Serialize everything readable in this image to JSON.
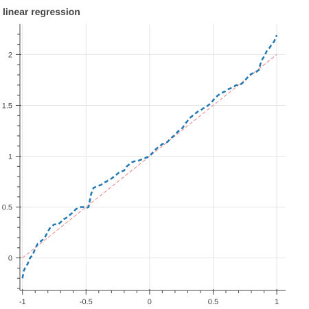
{
  "chart_data": {
    "type": "line",
    "title": "linear regression",
    "xlabel": "",
    "ylabel": "",
    "xlim": [
      -1.02,
      1.07
    ],
    "ylim": [
      -0.32,
      2.3
    ],
    "grid": true,
    "x_ticks": [
      -1,
      -0.5,
      0,
      0.5,
      1
    ],
    "x_tick_labels": [
      "-1",
      "-0.5",
      "0",
      "0.5",
      "1"
    ],
    "y_ticks": [
      0,
      0.5,
      1,
      1.5,
      2
    ],
    "y_tick_labels": [
      "0",
      "0.5",
      "1",
      "1.5",
      "2"
    ],
    "series": [
      {
        "style": "dashed",
        "color": "#1f77b4",
        "x": [
          -1.0,
          -0.99,
          -0.98,
          -0.96,
          -0.94,
          -0.92,
          -0.9,
          -0.88,
          -0.86,
          -0.84,
          -0.82,
          -0.8,
          -0.78,
          -0.75,
          -0.72,
          -0.7,
          -0.68,
          -0.66,
          -0.64,
          -0.62,
          -0.6,
          -0.58,
          -0.56,
          -0.54,
          -0.52,
          -0.5,
          -0.48,
          -0.46,
          -0.45,
          -0.44,
          -0.42,
          -0.4,
          -0.38,
          -0.36,
          -0.34,
          -0.32,
          -0.3,
          -0.28,
          -0.26,
          -0.24,
          -0.22,
          -0.2,
          -0.18,
          -0.16,
          -0.14,
          -0.12,
          -0.1,
          -0.08,
          -0.06,
          -0.04,
          -0.02,
          0.0,
          0.02,
          0.04,
          0.06,
          0.08,
          0.1,
          0.12,
          0.14,
          0.16,
          0.18,
          0.2,
          0.22,
          0.24,
          0.26,
          0.28,
          0.3,
          0.32,
          0.34,
          0.36,
          0.38,
          0.4,
          0.42,
          0.44,
          0.46,
          0.48,
          0.5,
          0.52,
          0.54,
          0.56,
          0.58,
          0.6,
          0.62,
          0.64,
          0.66,
          0.68,
          0.7,
          0.72,
          0.74,
          0.76,
          0.78,
          0.8,
          0.82,
          0.84,
          0.86,
          0.87,
          0.88,
          0.9,
          0.92,
          0.94,
          0.96,
          0.98,
          0.99,
          1.0
        ],
        "y": [
          -0.2,
          -0.13,
          -0.1,
          -0.06,
          0.0,
          0.03,
          0.09,
          0.14,
          0.16,
          0.18,
          0.21,
          0.26,
          0.3,
          0.33,
          0.33,
          0.35,
          0.38,
          0.39,
          0.41,
          0.43,
          0.45,
          0.48,
          0.49,
          0.5,
          0.5,
          0.49,
          0.5,
          0.63,
          0.66,
          0.69,
          0.7,
          0.71,
          0.72,
          0.74,
          0.75,
          0.77,
          0.78,
          0.8,
          0.82,
          0.84,
          0.85,
          0.86,
          0.9,
          0.92,
          0.94,
          0.95,
          0.95,
          0.96,
          0.97,
          0.98,
          0.99,
          1.0,
          1.03,
          1.06,
          1.08,
          1.1,
          1.12,
          1.13,
          1.14,
          1.17,
          1.19,
          1.21,
          1.24,
          1.26,
          1.28,
          1.32,
          1.35,
          1.38,
          1.4,
          1.42,
          1.44,
          1.45,
          1.47,
          1.48,
          1.5,
          1.52,
          1.55,
          1.58,
          1.6,
          1.62,
          1.63,
          1.64,
          1.66,
          1.67,
          1.68,
          1.7,
          1.7,
          1.71,
          1.73,
          1.76,
          1.79,
          1.81,
          1.82,
          1.83,
          1.85,
          1.9,
          1.94,
          1.98,
          2.03,
          2.06,
          2.1,
          2.13,
          2.16,
          2.19
        ]
      },
      {
        "style": "dashed",
        "color": "#f08080",
        "x": [
          -1,
          1
        ],
        "y": [
          0,
          2
        ]
      }
    ]
  }
}
